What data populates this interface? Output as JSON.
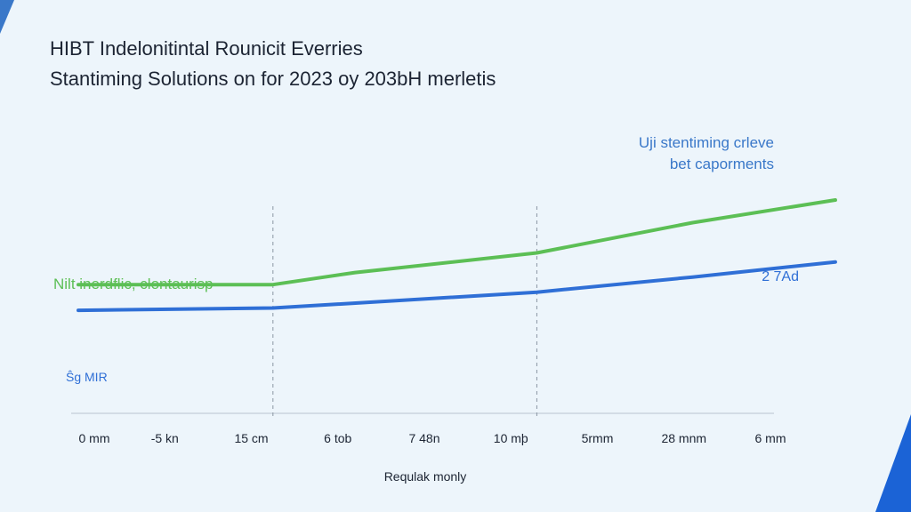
{
  "title_line1": "HIBT Indelonitintal Rounicit Everries",
  "title_line2": "Stantiming Solutions on for 2023 oy 203bH merletis",
  "colors": {
    "green": "#5cbf55",
    "blue": "#2f6fd6",
    "axis": "#b9c4cf",
    "text": "#1c2433"
  },
  "chart_data": {
    "type": "line",
    "title": "HIBT Indelonitintal Rounicit Everries",
    "subtitle": "Stantiming Solutions on for 2023 oy 203bH merletis",
    "xlabel": "Requlak monly",
    "ylabel": "",
    "categories": [
      "0 mm",
      "-5 kn",
      "15 cm",
      "6 tob",
      "7 48n",
      "10 mþ",
      "5rmm",
      "28 mnm",
      "6 mm"
    ],
    "ylim": [
      0,
      100
    ],
    "grid": false,
    "series": [
      {
        "name": "Nilt inerdflic, clontaurisp",
        "color": "#5cbf55",
        "points": [
          [
            0,
            44
          ],
          [
            2.25,
            44
          ],
          [
            3.2,
            52
          ],
          [
            5.3,
            65
          ],
          [
            7.1,
            85
          ],
          [
            8.75,
            100
          ]
        ]
      },
      {
        "name": "Ŝg MIR",
        "color": "#2f6fd6",
        "points": [
          [
            0,
            27
          ],
          [
            2.25,
            28.5
          ],
          [
            5.3,
            39
          ],
          [
            7.1,
            49
          ],
          [
            8.75,
            59
          ]
        ]
      }
    ],
    "annotations": {
      "top_right": [
        "Uji stentiming crleve",
        "bet caporments"
      ],
      "blue_end_label": "2 7Ad"
    },
    "reference_lines_x": [
      2.25,
      5.3
    ]
  }
}
